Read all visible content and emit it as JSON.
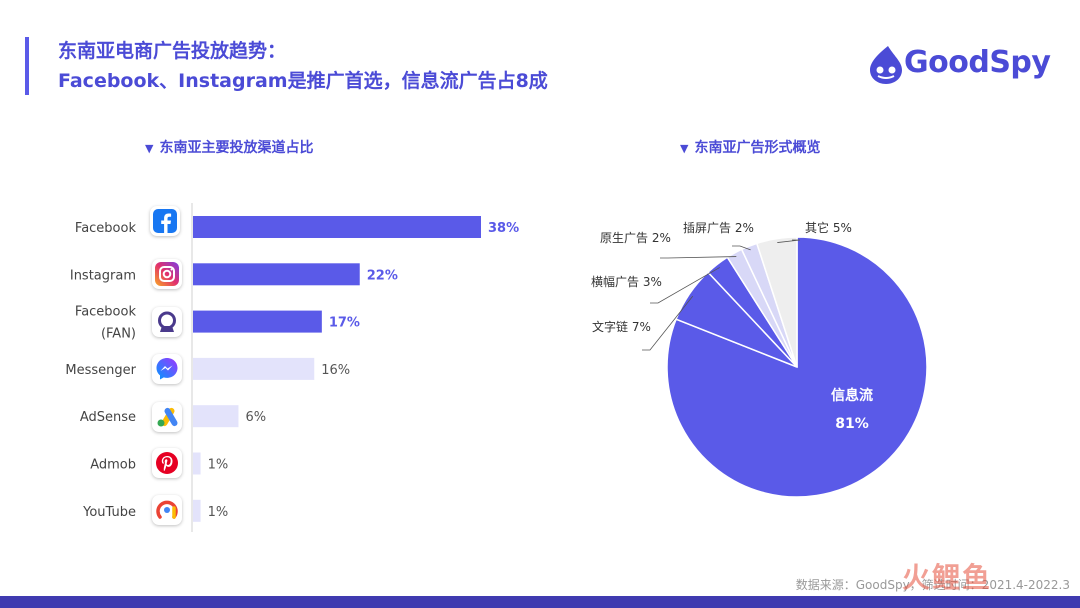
{
  "title_line1": "东南亚电商广告投放趋势：",
  "title_line2": "Facebook、Instagram是推广首选，信息流广告占8成",
  "logo_text": "GoodSpy",
  "source_text": "数据来源：GoodSpy，筛选时间：2021.4-2022.3",
  "watermark_text": "火鲤鱼",
  "colors": {
    "accent": "#5a5ae8",
    "light": "#e3e3fb",
    "pie_light": "#d8d8f7",
    "pie_other": "#eeeeee"
  },
  "chart_data": [
    {
      "type": "bar",
      "orientation": "horizontal",
      "title": "东南亚主要投放渠道占比",
      "categories": [
        "Facebook",
        "Instagram",
        "Facebook (FAN)",
        "Messenger",
        "AdSense",
        "Admob",
        "YouTube"
      ],
      "category_lines": [
        [
          "Facebook"
        ],
        [
          "Instagram"
        ],
        [
          "Facebook",
          "(FAN)"
        ],
        [
          "Messenger"
        ],
        [
          "AdSense"
        ],
        [
          "Admob"
        ],
        [
          "YouTube"
        ]
      ],
      "values": [
        38,
        22,
        17,
        16,
        6,
        1,
        1
      ],
      "value_labels": [
        "38%",
        "22%",
        "17%",
        "16%",
        "6%",
        "1%",
        "1%"
      ],
      "highlight": [
        true,
        true,
        true,
        false,
        false,
        false,
        false
      ],
      "icons": [
        "facebook-icon",
        "instagram-icon",
        "facebook-audience-network-icon",
        "messenger-icon",
        "adsense-icon",
        "pinterest-icon",
        "ads-icon"
      ],
      "xlim": [
        0,
        38
      ]
    },
    {
      "type": "pie",
      "title": "东南亚广告形式概览",
      "labels": [
        "信息流",
        "文字链",
        "横幅广告",
        "原生广告",
        "插屏广告",
        "其它"
      ],
      "values": [
        81,
        7,
        3,
        2,
        2,
        5
      ],
      "value_labels": [
        "81%",
        "7%",
        "3%",
        "2%",
        "2%",
        "5%"
      ]
    }
  ]
}
